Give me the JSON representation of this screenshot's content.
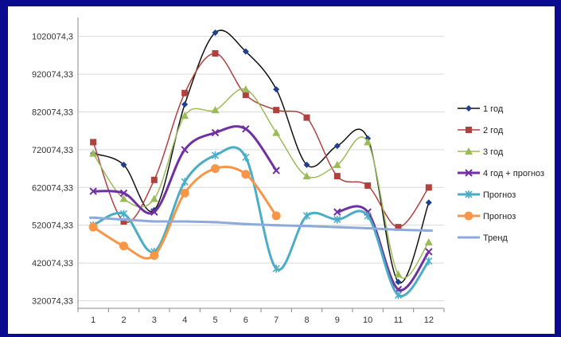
{
  "background": "#0b0b8f",
  "chart_data": {
    "type": "line",
    "title": "",
    "xlabel": "",
    "ylabel": "",
    "categories": [
      "1",
      "2",
      "3",
      "4",
      "5",
      "6",
      "7",
      "8",
      "9",
      "10",
      "11",
      "12"
    ],
    "y_ticks": [
      320074.33,
      420074.33,
      520074.33,
      620074.33,
      720074.33,
      820074.33,
      920074.33,
      1020074.3
    ],
    "y_tick_labels": [
      "320074,33",
      "420074,33",
      "520074,33",
      "620074,33",
      "720074,33",
      "820074,33",
      "920074,33",
      "1020074,3"
    ],
    "ylim": [
      320074.33,
      1020074.3
    ],
    "grid": true,
    "legend_position": "right",
    "series": [
      {
        "name": "1 год",
        "color": "#1f3f8f",
        "marker": "diamond",
        "stroke": "#111111",
        "values": [
          710000,
          680000,
          560000,
          840000,
          1030000,
          980000,
          880000,
          680000,
          730000,
          750000,
          370000,
          580000
        ]
      },
      {
        "name": "2 год",
        "color": "#b0413e",
        "marker": "square",
        "values": [
          740000,
          530000,
          640000,
          870000,
          975000,
          865000,
          825000,
          805000,
          650000,
          625000,
          515000,
          620000
        ]
      },
      {
        "name": "3 год",
        "color": "#9bbb59",
        "marker": "triangle",
        "values": [
          710000,
          590000,
          590000,
          810000,
          825000,
          880000,
          765000,
          650000,
          680000,
          740000,
          390000,
          475000
        ]
      },
      {
        "name": "4 год + прогноз",
        "color": "#7030a0",
        "marker": "x",
        "values": [
          610000,
          605000,
          555000,
          720000,
          765000,
          775000,
          665000,
          null,
          555000,
          555000,
          350000,
          450000
        ]
      },
      {
        "name": "Прогноз",
        "color": "#4bacc6",
        "marker": "star",
        "values": [
          520000,
          550000,
          450000,
          635000,
          705000,
          700000,
          405000,
          545000,
          535000,
          545000,
          335000,
          425000
        ]
      },
      {
        "name": "Прогноз",
        "color": "#f79646",
        "marker": "circle",
        "values": [
          515000,
          465000,
          440000,
          605000,
          670000,
          655000,
          545000,
          null,
          null,
          null,
          null,
          null
        ]
      },
      {
        "name": "Тренд",
        "color": "#8eaadb",
        "marker": "dash",
        "linewidth": 3,
        "values": [
          540000,
          535000,
          530000,
          530000,
          528000,
          523000,
          520000,
          518000,
          515000,
          512000,
          508000,
          506000
        ]
      }
    ]
  }
}
